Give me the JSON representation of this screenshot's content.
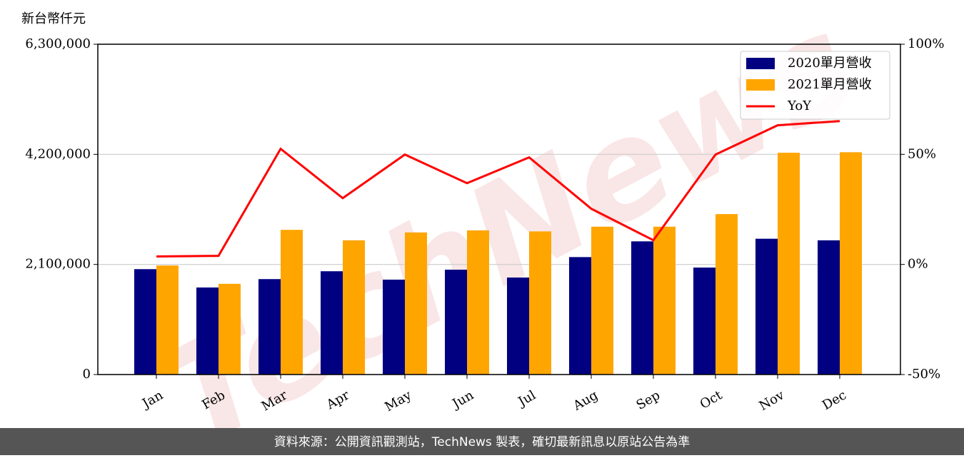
{
  "chart_data": {
    "type": "bar-line",
    "y_axis_label": "新台幣仟元",
    "watermark": "TechNews",
    "source": "資料來源：公開資訊觀測站，TechNews 製表，確切最新訊息以原站公告為準",
    "categories": [
      "Jan",
      "Feb",
      "Mar",
      "Apr",
      "May",
      "Jun",
      "Jul",
      "Aug",
      "Sep",
      "Oct",
      "Nov",
      "Dec"
    ],
    "series": [
      {
        "name": "2020單月營收",
        "color": "#000080",
        "kind": "bar",
        "values": [
          2010000,
          1660000,
          1820000,
          1970000,
          1810000,
          2000000,
          1850000,
          2240000,
          2540000,
          2040000,
          2590000,
          2560000
        ]
      },
      {
        "name": "2021單月營收",
        "color": "#ffa500",
        "kind": "bar",
        "values": [
          2080000,
          1730000,
          2760000,
          2560000,
          2710000,
          2750000,
          2730000,
          2820000,
          2820000,
          3060000,
          4230000,
          4240000
        ]
      },
      {
        "name": "YoY",
        "color": "#ff0000",
        "kind": "line",
        "axis": "y2",
        "values": [
          3.6,
          3.9,
          52.5,
          30.1,
          49.9,
          36.9,
          48.6,
          25.3,
          11.0,
          49.9,
          63.2,
          65.1
        ]
      }
    ],
    "ylim": [
      0,
      6300000
    ],
    "yticks": [
      0,
      {
        "value": 2100000,
        "label": "2,100,000"
      },
      {
        "value": 4200000,
        "label": "4,200,000"
      },
      {
        "value": 6300000,
        "label": "6,300,000"
      }
    ],
    "y2lim": [
      -50,
      100
    ],
    "y2ticks": [
      {
        "value": -50,
        "label": "-50%"
      },
      {
        "value": 0,
        "label": "0%"
      },
      {
        "value": 50,
        "label": "50%"
      },
      {
        "value": 100,
        "label": "100%"
      }
    ],
    "grid": true,
    "legend": "upper right"
  }
}
